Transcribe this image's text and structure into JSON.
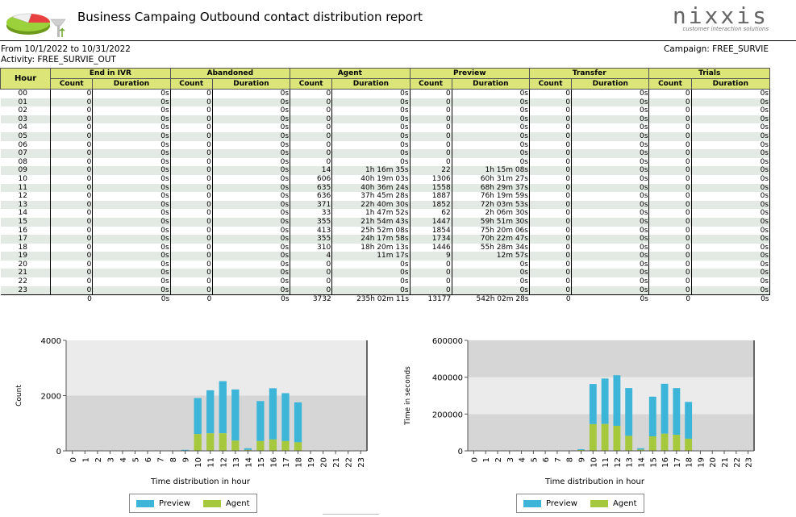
{
  "header": {
    "title": "Business Campaing Outbound contact distribution report",
    "brand_name": "nixxis",
    "brand_tagline": "customer interaction solutions"
  },
  "meta": {
    "date_range": "From  10/1/2022 to 10/31/2022",
    "activity": "Activity: FREE_SURVIE_OUT",
    "campaign": "Campaign: FREE_SURVIE"
  },
  "table": {
    "hour_header": "Hour",
    "groups": [
      "End in IVR",
      "Abandoned",
      "Agent",
      "Preview",
      "Transfer",
      "Trials"
    ],
    "sub_headers": [
      "Count",
      "Duration"
    ],
    "rows": [
      [
        "00",
        "0",
        "0s",
        "0",
        "0s",
        "0",
        "0s",
        "0",
        "0s",
        "0",
        "0s",
        "0",
        "0s"
      ],
      [
        "01",
        "0",
        "0s",
        "0",
        "0s",
        "0",
        "0s",
        "0",
        "0s",
        "0",
        "0s",
        "0",
        "0s"
      ],
      [
        "02",
        "0",
        "0s",
        "0",
        "0s",
        "0",
        "0s",
        "0",
        "0s",
        "0",
        "0s",
        "0",
        "0s"
      ],
      [
        "03",
        "0",
        "0s",
        "0",
        "0s",
        "0",
        "0s",
        "0",
        "0s",
        "0",
        "0s",
        "0",
        "0s"
      ],
      [
        "04",
        "0",
        "0s",
        "0",
        "0s",
        "0",
        "0s",
        "0",
        "0s",
        "0",
        "0s",
        "0",
        "0s"
      ],
      [
        "05",
        "0",
        "0s",
        "0",
        "0s",
        "0",
        "0s",
        "0",
        "0s",
        "0",
        "0s",
        "0",
        "0s"
      ],
      [
        "06",
        "0",
        "0s",
        "0",
        "0s",
        "0",
        "0s",
        "0",
        "0s",
        "0",
        "0s",
        "0",
        "0s"
      ],
      [
        "07",
        "0",
        "0s",
        "0",
        "0s",
        "0",
        "0s",
        "0",
        "0s",
        "0",
        "0s",
        "0",
        "0s"
      ],
      [
        "08",
        "0",
        "0s",
        "0",
        "0s",
        "0",
        "0s",
        "0",
        "0s",
        "0",
        "0s",
        "0",
        "0s"
      ],
      [
        "09",
        "0",
        "0s",
        "0",
        "0s",
        "14",
        "1h 16m 35s",
        "22",
        "1h 15m 08s",
        "0",
        "0s",
        "0",
        "0s"
      ],
      [
        "10",
        "0",
        "0s",
        "0",
        "0s",
        "606",
        "40h 19m 03s",
        "1306",
        "60h 31m 27s",
        "0",
        "0s",
        "0",
        "0s"
      ],
      [
        "11",
        "0",
        "0s",
        "0",
        "0s",
        "635",
        "40h 36m 24s",
        "1558",
        "68h 29m 37s",
        "0",
        "0s",
        "0",
        "0s"
      ],
      [
        "12",
        "0",
        "0s",
        "0",
        "0s",
        "636",
        "37h 45m 28s",
        "1887",
        "76h 19m 59s",
        "0",
        "0s",
        "0",
        "0s"
      ],
      [
        "13",
        "0",
        "0s",
        "0",
        "0s",
        "371",
        "22h 40m 30s",
        "1852",
        "72h 03m 53s",
        "0",
        "0s",
        "0",
        "0s"
      ],
      [
        "14",
        "0",
        "0s",
        "0",
        "0s",
        "33",
        "1h 47m 52s",
        "62",
        "2h 06m 30s",
        "0",
        "0s",
        "0",
        "0s"
      ],
      [
        "15",
        "0",
        "0s",
        "0",
        "0s",
        "355",
        "21h 54m 43s",
        "1447",
        "59h 51m 30s",
        "0",
        "0s",
        "0",
        "0s"
      ],
      [
        "16",
        "0",
        "0s",
        "0",
        "0s",
        "413",
        "25h 52m 08s",
        "1854",
        "75h 20m 06s",
        "0",
        "0s",
        "0",
        "0s"
      ],
      [
        "17",
        "0",
        "0s",
        "0",
        "0s",
        "355",
        "24h 17m 58s",
        "1734",
        "70h 22m 47s",
        "0",
        "0s",
        "0",
        "0s"
      ],
      [
        "18",
        "0",
        "0s",
        "0",
        "0s",
        "310",
        "18h 20m 13s",
        "1446",
        "55h 28m 34s",
        "0",
        "0s",
        "0",
        "0s"
      ],
      [
        "19",
        "0",
        "0s",
        "0",
        "0s",
        "4",
        "11m 17s",
        "9",
        "12m 57s",
        "0",
        "0s",
        "0",
        "0s"
      ],
      [
        "20",
        "0",
        "0s",
        "0",
        "0s",
        "0",
        "0s",
        "0",
        "0s",
        "0",
        "0s",
        "0",
        "0s"
      ],
      [
        "21",
        "0",
        "0s",
        "0",
        "0s",
        "0",
        "0s",
        "0",
        "0s",
        "0",
        "0s",
        "0",
        "0s"
      ],
      [
        "22",
        "0",
        "0s",
        "0",
        "0s",
        "0",
        "0s",
        "0",
        "0s",
        "0",
        "0s",
        "0",
        "0s"
      ],
      [
        "23",
        "0",
        "0s",
        "0",
        "0s",
        "0",
        "0s",
        "0",
        "0s",
        "0",
        "0s",
        "0",
        "0s"
      ]
    ],
    "totals": [
      "",
      "0",
      "0s",
      "0",
      "0s",
      "3732",
      "235h 02m 11s",
      "13177",
      "542h 02m 28s",
      "0",
      "0s",
      "0",
      "0s"
    ]
  },
  "colors": {
    "header_bg": "#dce678",
    "row_alt": "#e3e9e3",
    "preview": "#3cb5d8",
    "agent": "#a6c83c",
    "plot_band_light": "#ebebeb",
    "plot_band_dark": "#d6d6d6"
  },
  "chart_data": [
    {
      "type": "bar",
      "stacked": true,
      "categories": [
        "0",
        "1",
        "2",
        "3",
        "4",
        "5",
        "6",
        "7",
        "8",
        "9",
        "10",
        "11",
        "12",
        "13",
        "14",
        "15",
        "16",
        "17",
        "18",
        "19",
        "20",
        "21",
        "22",
        "23"
      ],
      "series": [
        {
          "name": "Agent",
          "values": [
            0,
            0,
            0,
            0,
            0,
            0,
            0,
            0,
            0,
            14,
            606,
            635,
            636,
            371,
            33,
            355,
            413,
            355,
            310,
            4,
            0,
            0,
            0,
            0
          ]
        },
        {
          "name": "Preview",
          "values": [
            0,
            0,
            0,
            0,
            0,
            0,
            0,
            0,
            0,
            22,
            1306,
            1558,
            1887,
            1852,
            62,
            1447,
            1854,
            1734,
            1446,
            9,
            0,
            0,
            0,
            0
          ]
        }
      ],
      "xlabel": "Time distribution in hour",
      "ylabel": "Count",
      "ylim": [
        0,
        4000
      ],
      "yticks": [
        "0",
        "2000",
        "4000"
      ],
      "legend": "bottom"
    },
    {
      "type": "bar",
      "stacked": true,
      "categories": [
        "0",
        "1",
        "2",
        "3",
        "4",
        "5",
        "6",
        "7",
        "8",
        "9",
        "10",
        "11",
        "12",
        "13",
        "14",
        "15",
        "16",
        "17",
        "18",
        "19",
        "20",
        "21",
        "22",
        "23"
      ],
      "series": [
        {
          "name": "Agent",
          "values": [
            0,
            0,
            0,
            0,
            0,
            0,
            0,
            0,
            0,
            4595,
            145143,
            146184,
            135928,
            81630,
            6472,
            78883,
            93128,
            87478,
            66013,
            677,
            0,
            0,
            0,
            0
          ]
        },
        {
          "name": "Preview",
          "values": [
            0,
            0,
            0,
            0,
            0,
            0,
            0,
            0,
            0,
            4508,
            217887,
            246577,
            274799,
            259433,
            7590,
            215490,
            271206,
            253367,
            199714,
            777,
            0,
            0,
            0,
            0
          ]
        }
      ],
      "xlabel": "Time distribution in hour",
      "ylabel": "Time in seconds",
      "ylim": [
        0,
        600000
      ],
      "yticks": [
        "0",
        "200000",
        "400000",
        "600000"
      ],
      "legend": "bottom"
    }
  ]
}
